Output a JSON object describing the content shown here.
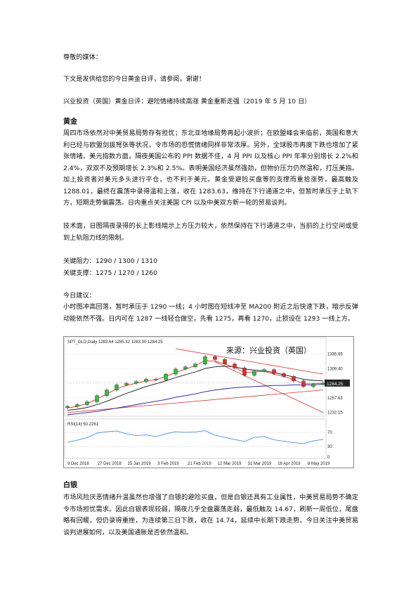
{
  "greeting": "尊敬的媒体：",
  "intro": "下文是发供给您的今日黄金日评，请参阅，谢谢！",
  "title": "兴业投资（英国）黄金日评：避险情绪持续高涨 黄金重新走强（2019 年 5 月 10 日）",
  "gold": {
    "heading": "黄金",
    "para1": "周四市场依然对中美贸易局势存有担忧；东北亚地缘局势再起小波折；在欧盟峰会来临前，英国和意大利已经与欧盟剑拔弩张等状况，令市场的恐慌情绪同样非常浓厚。另外，全球股市再度下跌也增加了紧张情绪。美元指数方面，隔夜美国公布的 PPI 数据不佳，4 月 PPI 以及核心 PPI 年率分别增长 2.2%和 2.4%，双双不及预期增长 2.3%和 2.5%。表明美国经济虽然强劲，但物价压力仍然温和，打压美指。加上投资者对美元多头进行平仓，也不利于美元。黄金受避险买盘等的支撑而重拾涨势，最高触及 1288.01，最终在震荡中录得温和上涨，收在 1283.63，维持在下行通道之中，但暂时承压于上轨下方，短期走势偏震荡。日内重点关注美国 CPI 以及中美双方新一轮的贸易谈判。",
    "para2": "技术面，日图隔夜录得的长上影线暗示上方压力较大，依然保持在下行通道之中，当前的上行空间或受到上轨阻力线的限制。",
    "resistance": "关键阻力：1290 / 1300 / 1310",
    "support": "关键支撑：1275 / 1270 / 1260",
    "advice_heading": "今日建议：",
    "advice": "小时图冲高回落，暂时承压于 1290 一线；4 小时图在短线冲至 MA200 附近之后快速下跌，暗示反弹动能依然不强。日内可在 1287 一线轻仓做空，先看 1275，再看 1270，止损设在 1293 一线上方。"
  },
  "chart_data": {
    "type": "line",
    "header": "SPT_GLD,Daily  1283.64 1285.32 1283.00 1284.25",
    "watermark": "来源：兴业投资（英国）",
    "y_ticks": [
      "1335.65",
      "1309.40",
      "1284.25",
      "1257.63",
      "1232.15"
    ],
    "current_price_label": "1284.25",
    "x_ticks": [
      "9 Dec 2018",
      "27 Dec 2018",
      "15 Jan 2019",
      "3 Feb 2019",
      "21 Feb 2019",
      "12 Mar 2019",
      "31 Mar 2019",
      "18 Apr 2019",
      "8 May 2019"
    ],
    "ylim": [
      1228,
      1350
    ],
    "x": [
      0,
      4,
      8,
      12,
      16,
      20,
      24,
      28,
      32,
      36,
      40,
      44,
      48,
      52,
      56,
      60,
      64,
      68,
      72,
      76,
      80,
      84,
      88,
      92,
      96,
      100,
      104
    ],
    "close": [
      1243,
      1246,
      1251,
      1262,
      1272,
      1281,
      1284,
      1287,
      1291,
      1290,
      1300,
      1309,
      1313,
      1318,
      1331,
      1326,
      1318,
      1311,
      1298,
      1305,
      1308,
      1301,
      1296,
      1288,
      1278,
      1282,
      1284
    ],
    "ma_fast": [
      1240,
      1243,
      1248,
      1256,
      1265,
      1274,
      1280,
      1284,
      1288,
      1290,
      1296,
      1303,
      1309,
      1315,
      1324,
      1323,
      1318,
      1312,
      1303,
      1304,
      1305,
      1300,
      1296,
      1290,
      1283,
      1283,
      1284
    ],
    "ma_mid": [
      1236,
      1238,
      1241,
      1246,
      1252,
      1259,
      1266,
      1272,
      1278,
      1283,
      1288,
      1294,
      1299,
      1304,
      1310,
      1313,
      1314,
      1313,
      1309,
      1307,
      1306,
      1303,
      1299,
      1295,
      1291,
      1289,
      1288
    ],
    "ma_slow": [
      1228,
      1230,
      1232,
      1234,
      1237,
      1240,
      1243,
      1246,
      1249,
      1252,
      1255,
      1259,
      1262,
      1265,
      1269,
      1272,
      1274,
      1276,
      1277,
      1278,
      1279,
      1280,
      1280,
      1281,
      1281,
      1281,
      1282
    ],
    "rsi_label": "RSI(14) 50.2261",
    "rsi_ticks": [
      "70",
      "30",
      "0"
    ],
    "rsi": [
      42,
      48,
      55,
      68,
      72,
      74,
      66,
      61,
      63,
      58,
      66,
      72,
      70,
      71,
      75,
      62,
      56,
      50,
      44,
      56,
      58,
      49,
      45,
      41,
      38,
      46,
      50
    ]
  },
  "silver": {
    "heading": "白银",
    "para": "市场风险厌恶情绪升温虽然也增强了白银的避险买盘，但是白银还具有工业属性，中美贸易局势不确定令市场担忧需求。因此白银表现较弱，隔夜几乎全盘震荡走弱，最低触及 14.67，刷新一周低位，尾盘略有回暖，但仍录得重挫，为连续第三日下跌，收在 14.74，延续中长期下跌走势。今日关注中美贸易谈判进展如何，以及美国通胀是否依然温和。"
  }
}
